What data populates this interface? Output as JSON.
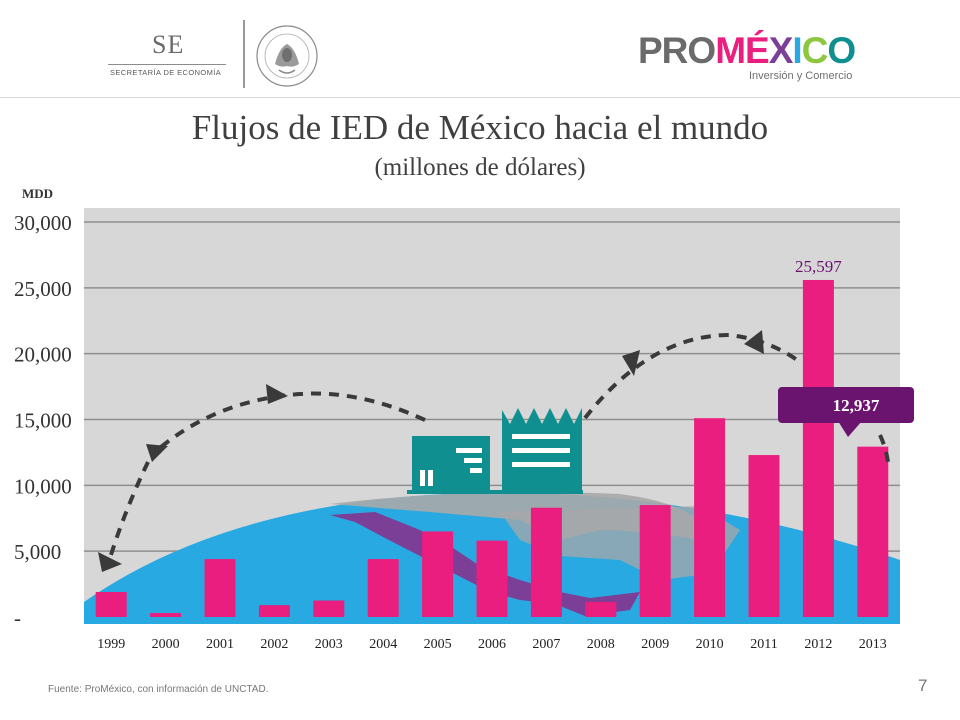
{
  "header": {
    "se_logo_text": "SE",
    "se_logo_subtitle": "SECRETARÍA DE ECONOMÍA",
    "seal_text": "ESTADOS UNIDOS MEXICANOS",
    "promexico_logo": "PROMÉXICO",
    "promexico_tagline": "Inversión y Comercio"
  },
  "slide": {
    "title": "Flujos de IED de México hacia el mundo",
    "subtitle": "(millones de dólares)",
    "unit_label": "MDD",
    "source": "Fuente: ProMéxico, con información de UNCTAD.",
    "page_number": "7"
  },
  "callout": {
    "text": "12,937"
  },
  "colors": {
    "bar": "#e91e7e",
    "plot_background": "#d7d7d7",
    "globe": "#29a9e1",
    "mexico": "#7b3f98",
    "buildings": "#0f8f8f",
    "callout": "#6a1470",
    "arrows": "#3a3a3a",
    "data_label": "#6a1470"
  },
  "chart_data": {
    "type": "bar",
    "categories": [
      "1999",
      "2000",
      "2001",
      "2002",
      "2003",
      "2004",
      "2005",
      "2006",
      "2007",
      "2008",
      "2009",
      "2010",
      "2011",
      "2012",
      "2013"
    ],
    "values": [
      1900,
      300,
      4400,
      900,
      1250,
      4400,
      6500,
      5800,
      8300,
      1150,
      8500,
      15100,
      12300,
      25597,
      12937
    ],
    "data_labels": [
      {
        "category": "2012",
        "text": "25,597"
      }
    ],
    "yticks": [
      0,
      5000,
      10000,
      15000,
      20000,
      25000,
      30000
    ],
    "ytick_labels": [
      "-",
      "5,000",
      "10,000",
      "15,000",
      "20,000",
      "25,000",
      "30,000"
    ],
    "ylim": [
      0,
      30000
    ],
    "ylabel": "MDD",
    "grid": true,
    "legend": "none"
  }
}
